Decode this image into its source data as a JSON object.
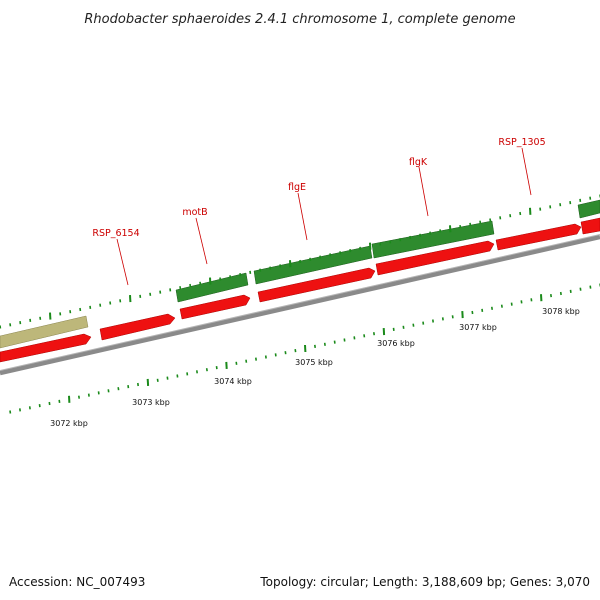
{
  "title": "Rhodobacter sphaeroides 2.4.1 chromosome 1, complete genome",
  "footer": {
    "accession": "Accession: NC_007493",
    "summary": "Topology: circular; Length: 3,188,609 bp; Genes: 3,070"
  },
  "colors": {
    "forward_gene": "#2e8b2e",
    "reverse_gene": "#ee1111",
    "other_feature": "#bdb77a",
    "backbone": "#8a8a8a",
    "tick": "#1a8a1a",
    "label": "#cc0000"
  },
  "gene_labels": [
    "RSP_6154",
    "motB",
    "flgE",
    "flgK",
    "RSP_1305"
  ],
  "kbp_labels": [
    "3072 kbp",
    "3073 kbp",
    "3074 kbp",
    "3075 kbp",
    "3076 kbp",
    "3077 kbp",
    "3078 kbp"
  ]
}
